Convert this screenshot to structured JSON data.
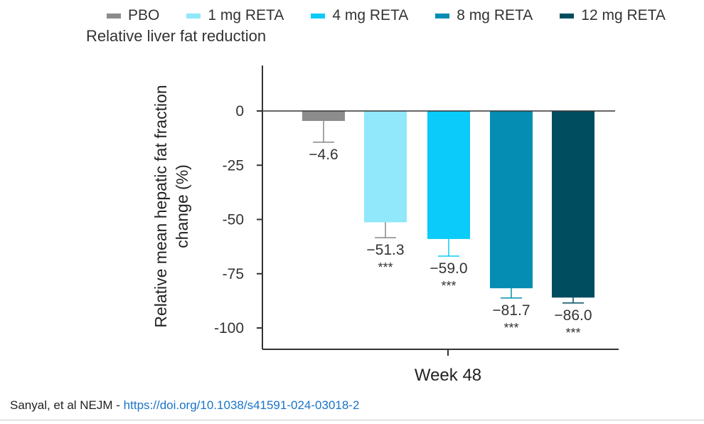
{
  "chart_data": {
    "type": "bar",
    "title": "Relative liver fat reduction",
    "ylabel": "Relative mean hepatic fat fraction change (%)",
    "xlabel": "Week 48",
    "ylim": [
      -100,
      20
    ],
    "yticks": [
      0,
      -25,
      -50,
      -75,
      -100
    ],
    "ytick_labels": [
      "0",
      "-25",
      "-50",
      "-75",
      "-100"
    ],
    "legend_position": "top",
    "series": [
      {
        "name": "PBO",
        "value": -4.6,
        "label": "−4.6",
        "error_low": -14.4,
        "sig": "",
        "color": "#8c8c8c"
      },
      {
        "name": "1 mg RETA",
        "value": -51.3,
        "label": "−51.3",
        "error_low": -58.4,
        "sig": "***",
        "color": "#90e8fa"
      },
      {
        "name": "4 mg RETA",
        "value": -59.0,
        "label": "−59.0",
        "error_low": -66.9,
        "sig": "***",
        "color": "#0acbf9"
      },
      {
        "name": "8 mg RETA",
        "value": -81.7,
        "label": "−81.7",
        "error_low": -86.2,
        "sig": "***",
        "color": "#058db3"
      },
      {
        "name": "12 mg RETA",
        "value": -86.0,
        "label": "−86.0",
        "error_low": -88.5,
        "sig": "***",
        "color": "#004d60"
      }
    ]
  },
  "footer": {
    "citation": "Sanyal, et al NEJM - ",
    "link": "https://doi.org/10.1038/s41591-024-03018-2"
  }
}
